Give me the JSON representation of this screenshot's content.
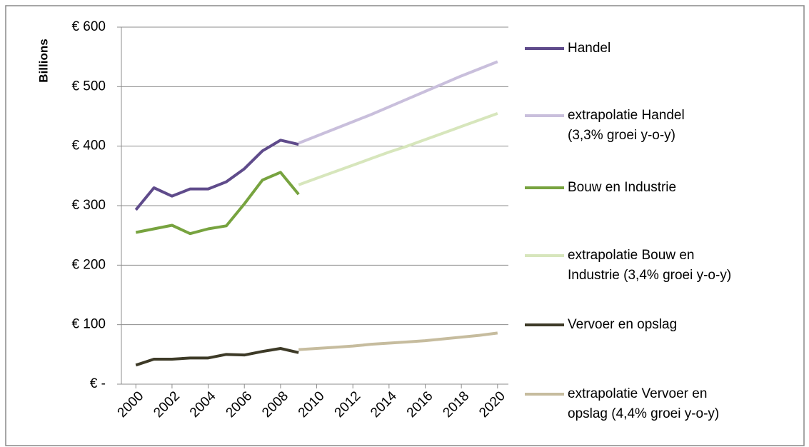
{
  "chart_data": {
    "type": "line",
    "ylabel": "Billions",
    "xlim": [
      1999.2,
      2020.6
    ],
    "xticks": [
      2000,
      2002,
      2004,
      2006,
      2008,
      2010,
      2012,
      2014,
      2016,
      2018,
      2020
    ],
    "ylim": [
      0,
      600
    ],
    "yticks": [
      {
        "value": 600,
        "label": "€ 600"
      },
      {
        "value": 500,
        "label": "€ 500"
      },
      {
        "value": 400,
        "label": "€ 400"
      },
      {
        "value": 300,
        "label": "€ 300"
      },
      {
        "value": 200,
        "label": "€ 200"
      },
      {
        "value": 100,
        "label": "€ 100"
      },
      {
        "value": 0,
        "label": "€ -"
      }
    ],
    "grid": true,
    "legend": "right",
    "series": [
      {
        "name": "Handel",
        "color": "#5f4b8b",
        "x": [
          2000,
          2001,
          2002,
          2003,
          2004,
          2005,
          2006,
          2007,
          2008,
          2009
        ],
        "values": [
          293,
          330,
          316,
          328,
          328,
          340,
          362,
          392,
          410,
          403
        ]
      },
      {
        "name": "extrapolatie Handel\n(3,3% groei y-o-y)",
        "color": "#c9bfdc",
        "x": [
          2009,
          2010,
          2011,
          2012,
          2013,
          2014,
          2015,
          2016,
          2017,
          2018,
          2019,
          2020
        ],
        "values": [
          405,
          417,
          429,
          441,
          453,
          466,
          479,
          492,
          505,
          518,
          530,
          542
        ]
      },
      {
        "name": "Bouw en Industrie",
        "color": "#77a33f",
        "x": [
          2000,
          2001,
          2002,
          2003,
          2004,
          2005,
          2006,
          2007,
          2008,
          2009
        ],
        "values": [
          255,
          261,
          267,
          253,
          261,
          266,
          303,
          343,
          356,
          319
        ]
      },
      {
        "name": "extrapolatie Bouw en\nIndustrie (3,4% groei y-o-y)",
        "color": "#d7e6bc",
        "x": [
          2009,
          2010,
          2011,
          2012,
          2013,
          2014,
          2015,
          2016,
          2017,
          2018,
          2019,
          2020
        ],
        "values": [
          335,
          346,
          357,
          368,
          379,
          390,
          400,
          411,
          422,
          433,
          444,
          455
        ]
      },
      {
        "name": "Vervoer en opslag",
        "color": "#3d3a27",
        "x": [
          2000,
          2001,
          2002,
          2003,
          2004,
          2005,
          2006,
          2007,
          2008,
          2009
        ],
        "values": [
          32,
          42,
          42,
          44,
          44,
          50,
          49,
          55,
          60,
          53
        ]
      },
      {
        "name": "extrapolatie Vervoer en\nopslag (4,4% groei y-o-y)",
        "color": "#c6bc9e",
        "x": [
          2009,
          2010,
          2011,
          2012,
          2013,
          2014,
          2015,
          2016,
          2017,
          2018,
          2019,
          2020
        ],
        "values": [
          58,
          60,
          62,
          64,
          67,
          69,
          71,
          73,
          76,
          79,
          82,
          86
        ]
      }
    ]
  }
}
